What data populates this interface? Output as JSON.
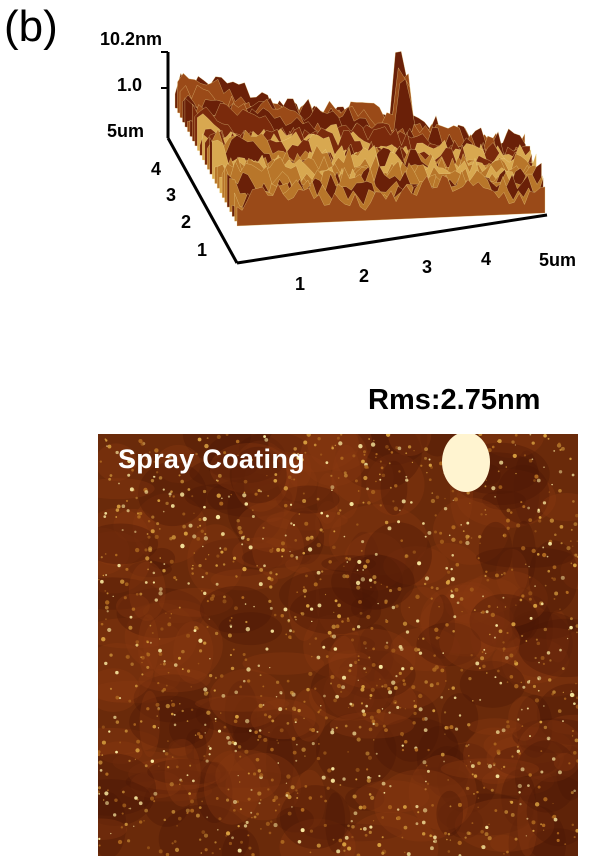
{
  "panel": {
    "label": "(b)"
  },
  "surface_plot": {
    "z_max_label": "10.2nm",
    "z_tick_label": "1.0",
    "y_extent_label": "5um",
    "x_extent_label": "5um",
    "y_ticks": [
      "4",
      "3",
      "2",
      "1"
    ],
    "x_ticks": [
      "1",
      "2",
      "3",
      "4"
    ],
    "colors": {
      "dark": "#5a1a08",
      "mid": "#b06a20",
      "light": "#f0e0a0",
      "peak": "#fff8e0"
    }
  },
  "afm_image": {
    "rms_label": "Rms:2.75nm",
    "overlay_label": "Spray Coating",
    "colors": {
      "base": "#6a2a0a",
      "dark": "#3a1005",
      "bright": "#f8e8a0"
    }
  }
}
